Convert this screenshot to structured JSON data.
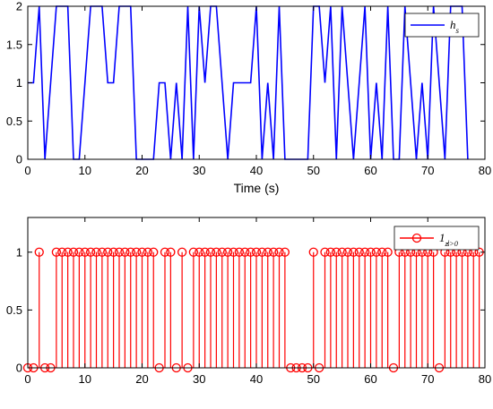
{
  "chart_data": [
    {
      "type": "line",
      "xlabel": "Time (s)",
      "ylabel": "",
      "xlim": [
        0,
        80
      ],
      "ylim": [
        0,
        2
      ],
      "xticks": [
        "0",
        "10",
        "20",
        "30",
        "40",
        "50",
        "60",
        "70",
        "80"
      ],
      "yticks": [
        "0",
        "0.5",
        "1",
        "1.5",
        "2"
      ],
      "legend": {
        "label": "h_s",
        "position": "top-right"
      },
      "color": "#0000ff",
      "series": [
        {
          "name": "h_s",
          "x": [
            0,
            1,
            2,
            3,
            4,
            5,
            6,
            7,
            8,
            9,
            10,
            11,
            12,
            13,
            14,
            15,
            16,
            17,
            18,
            19,
            20,
            21,
            22,
            23,
            24,
            25,
            26,
            27,
            28,
            29,
            30,
            31,
            32,
            33,
            34,
            35,
            36,
            37,
            38,
            39,
            40,
            41,
            42,
            43,
            44,
            45,
            46,
            47,
            48,
            49,
            50,
            51,
            52,
            53,
            54,
            55,
            56,
            57,
            58,
            59,
            60,
            61,
            62,
            63,
            64,
            65,
            66,
            67,
            68,
            69,
            70,
            71,
            72,
            73,
            74,
            75,
            76,
            77
          ],
          "y": [
            1,
            1,
            2,
            0,
            1,
            2,
            2,
            2,
            0,
            0,
            1,
            2,
            2,
            2,
            1,
            1,
            2,
            2,
            2,
            0,
            0,
            0,
            0,
            1,
            1,
            0,
            1,
            0,
            2,
            0,
            2,
            1,
            2,
            2,
            1,
            0,
            1,
            1,
            1,
            1,
            2,
            0,
            1,
            0,
            2,
            0,
            0,
            0,
            0,
            0,
            2,
            2,
            1,
            2,
            0,
            2,
            1,
            0,
            1,
            2,
            0,
            1,
            0,
            2,
            0,
            0,
            2,
            1,
            0,
            1,
            0,
            2,
            1,
            0,
            2,
            2,
            2,
            0
          ]
        }
      ]
    },
    {
      "type": "stem",
      "xlabel": "",
      "ylabel": "",
      "xlim": [
        0,
        80
      ],
      "ylim": [
        0,
        1.3
      ],
      "xticks": [
        "0",
        "10",
        "20",
        "30",
        "40",
        "50",
        "60",
        "70",
        "80"
      ],
      "yticks": [
        "0",
        "0.5",
        "1"
      ],
      "legend": {
        "label": "1_{z_s^i>0}",
        "position": "top-right"
      },
      "color": "#ff0000",
      "series": [
        {
          "name": "1_{z_s^i>0}",
          "x": [
            0,
            1,
            2,
            3,
            4,
            5,
            6,
            7,
            8,
            9,
            10,
            11,
            12,
            13,
            14,
            15,
            16,
            17,
            18,
            19,
            20,
            21,
            22,
            23,
            24,
            25,
            26,
            27,
            28,
            29,
            30,
            31,
            32,
            33,
            34,
            35,
            36,
            37,
            38,
            39,
            40,
            41,
            42,
            43,
            44,
            45,
            46,
            47,
            48,
            49,
            50,
            51,
            52,
            53,
            54,
            55,
            56,
            57,
            58,
            59,
            60,
            61,
            62,
            63,
            64,
            65,
            66,
            67,
            68,
            69,
            70,
            71,
            72,
            73,
            74,
            75,
            76,
            77,
            78,
            79
          ],
          "y": [
            0,
            0,
            1,
            0,
            0,
            1,
            1,
            1,
            1,
            1,
            1,
            1,
            1,
            1,
            1,
            1,
            1,
            1,
            1,
            1,
            1,
            1,
            1,
            0,
            1,
            1,
            0,
            1,
            0,
            1,
            1,
            1,
            1,
            1,
            1,
            1,
            1,
            1,
            1,
            1,
            1,
            1,
            1,
            1,
            1,
            1,
            0,
            0,
            0,
            0,
            1,
            0,
            1,
            1,
            1,
            1,
            1,
            1,
            1,
            1,
            1,
            1,
            1,
            1,
            0,
            1,
            1,
            1,
            1,
            1,
            1,
            1,
            0,
            1,
            1,
            1,
            1,
            1,
            1,
            1
          ]
        }
      ]
    }
  ]
}
